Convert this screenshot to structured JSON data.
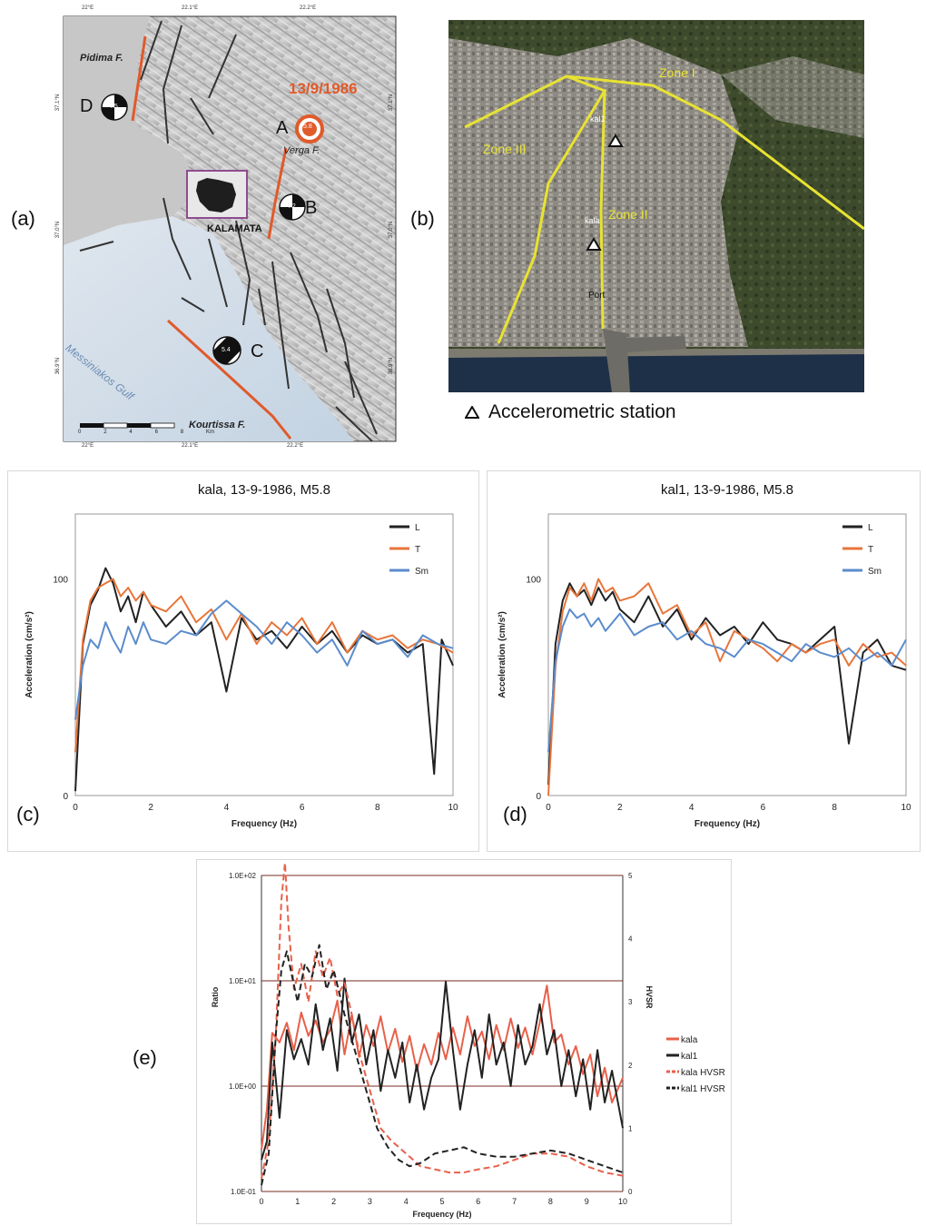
{
  "panels": {
    "a": {
      "label": "(a)",
      "faults": {
        "pidima": "Pidima F.",
        "verga": "Verga F.",
        "kourtissa": "Kourtissa F."
      },
      "city": "KALAMATA",
      "event_date": "13/9/1986",
      "gulf": "Messiniakos Gulf",
      "events": [
        {
          "letter": "A",
          "mag": "5.8",
          "color": "#e05a2b"
        },
        {
          "letter": "B",
          "mag": "4.2",
          "color": "#111111"
        },
        {
          "letter": "C",
          "mag": "5.4",
          "color": "#111111"
        },
        {
          "letter": "D",
          "mag": "4.5",
          "color": "#111111"
        }
      ],
      "scale": {
        "ticks": [
          "0",
          "2",
          "4",
          "6",
          "8"
        ],
        "unit": "Km"
      },
      "lon_ticks": [
        "22°E",
        "22.1°E",
        "22.2°E"
      ],
      "lat_ticks": [
        "37.1°N",
        "37.0°N",
        "36.9°N"
      ]
    },
    "b": {
      "label": "(b)",
      "zones": [
        "Zone I",
        "Zone II",
        "Zone III"
      ],
      "stations": [
        "kal1",
        "kala"
      ],
      "port": "Port",
      "legend": "Accelerometric station"
    },
    "c": {
      "label": "(c)"
    },
    "d": {
      "label": "(d)"
    },
    "e": {
      "label": "(e)"
    }
  },
  "chart_data": [
    {
      "type": "line",
      "title": "kala, 13-9-1986, M5.8",
      "xlabel": "Frequency (Hz)",
      "ylabel": "Acceleration (cm/s²)",
      "xlim": [
        0,
        10
      ],
      "x_ticks": [
        "0",
        "2",
        "4",
        "6",
        "8",
        "10"
      ],
      "y_ticks": [
        "0",
        "100"
      ],
      "legend_position": "top-right",
      "series": [
        {
          "name": "L",
          "color": "#222222",
          "x": [
            0,
            0.2,
            0.4,
            0.6,
            0.8,
            1.0,
            1.2,
            1.4,
            1.6,
            1.8,
            2.0,
            2.4,
            2.8,
            3.2,
            3.6,
            4.0,
            4.4,
            4.8,
            5.2,
            5.6,
            6.0,
            6.4,
            6.8,
            7.2,
            7.6,
            8.0,
            8.4,
            8.8,
            9.2,
            9.5,
            9.7,
            10
          ],
          "y": [
            2,
            70,
            88,
            95,
            105,
            98,
            85,
            92,
            80,
            94,
            88,
            78,
            85,
            74,
            80,
            48,
            82,
            72,
            76,
            68,
            78,
            70,
            76,
            66,
            74,
            70,
            72,
            66,
            70,
            10,
            72,
            60
          ]
        },
        {
          "name": "T",
          "color": "#e8753a",
          "x": [
            0,
            0.2,
            0.4,
            0.6,
            0.8,
            1.0,
            1.2,
            1.4,
            1.6,
            1.8,
            2.0,
            2.4,
            2.8,
            3.2,
            3.6,
            4.0,
            4.4,
            4.8,
            5.2,
            5.6,
            6.0,
            6.4,
            6.8,
            7.2,
            7.6,
            8.0,
            8.4,
            8.8,
            9.2,
            9.6,
            10
          ],
          "y": [
            20,
            72,
            90,
            96,
            98,
            100,
            92,
            96,
            90,
            94,
            88,
            85,
            92,
            80,
            86,
            72,
            84,
            70,
            80,
            74,
            82,
            70,
            80,
            66,
            76,
            72,
            74,
            68,
            72,
            70,
            66
          ]
        },
        {
          "name": "Sm",
          "color": "#5b8ccc",
          "x": [
            0,
            0.2,
            0.4,
            0.6,
            0.8,
            1.0,
            1.2,
            1.4,
            1.6,
            1.8,
            2.0,
            2.4,
            2.8,
            3.2,
            3.6,
            4.0,
            4.4,
            4.8,
            5.2,
            5.6,
            6.0,
            6.4,
            6.8,
            7.2,
            7.6,
            8.0,
            8.4,
            8.8,
            9.2,
            9.6,
            10
          ],
          "y": [
            35,
            60,
            72,
            68,
            80,
            72,
            66,
            78,
            70,
            80,
            72,
            70,
            76,
            74,
            84,
            90,
            84,
            78,
            70,
            80,
            74,
            66,
            72,
            60,
            76,
            70,
            72,
            64,
            74,
            70,
            68
          ]
        }
      ]
    },
    {
      "type": "line",
      "title": "kal1, 13-9-1986, M5.8",
      "xlabel": "Frequency (Hz)",
      "ylabel": "Acceleration (cm/s²)",
      "xlim": [
        0,
        10
      ],
      "x_ticks": [
        "0",
        "2",
        "4",
        "6",
        "8",
        "10"
      ],
      "y_ticks": [
        "0",
        "100"
      ],
      "legend_position": "top-right",
      "series": [
        {
          "name": "L",
          "color": "#222222",
          "x": [
            0,
            0.2,
            0.4,
            0.6,
            0.8,
            1.0,
            1.2,
            1.4,
            1.6,
            1.8,
            2.0,
            2.4,
            2.8,
            3.2,
            3.6,
            4.0,
            4.4,
            4.8,
            5.2,
            5.6,
            6.0,
            6.4,
            6.8,
            7.2,
            7.6,
            8.0,
            8.4,
            8.8,
            9.2,
            9.6,
            10
          ],
          "y": [
            5,
            70,
            90,
            98,
            92,
            95,
            88,
            96,
            90,
            94,
            86,
            80,
            92,
            78,
            86,
            72,
            82,
            74,
            78,
            70,
            80,
            72,
            70,
            66,
            72,
            78,
            24,
            66,
            72,
            60,
            58
          ]
        },
        {
          "name": "T",
          "color": "#e8753a",
          "x": [
            0,
            0.2,
            0.4,
            0.6,
            0.8,
            1.0,
            1.2,
            1.4,
            1.6,
            1.8,
            2.0,
            2.4,
            2.8,
            3.2,
            3.6,
            4.0,
            4.4,
            4.8,
            5.2,
            5.6,
            6.0,
            6.4,
            6.8,
            7.2,
            7.6,
            8.0,
            8.4,
            8.8,
            9.2,
            9.6,
            10
          ],
          "y": [
            0,
            60,
            85,
            96,
            92,
            98,
            90,
            100,
            94,
            96,
            90,
            92,
            98,
            84,
            88,
            74,
            80,
            62,
            76,
            72,
            68,
            62,
            70,
            66,
            70,
            72,
            60,
            70,
            64,
            66,
            60
          ]
        },
        {
          "name": "Sm",
          "color": "#5b8ccc",
          "x": [
            0,
            0.2,
            0.4,
            0.6,
            0.8,
            1.0,
            1.2,
            1.4,
            1.6,
            1.8,
            2.0,
            2.4,
            2.8,
            3.2,
            3.6,
            4.0,
            4.4,
            4.8,
            5.2,
            5.6,
            6.0,
            6.4,
            6.8,
            7.2,
            7.6,
            8.0,
            8.4,
            8.8,
            9.2,
            9.6,
            10
          ],
          "y": [
            20,
            62,
            78,
            86,
            82,
            84,
            78,
            82,
            76,
            80,
            84,
            74,
            78,
            80,
            72,
            76,
            70,
            68,
            64,
            72,
            70,
            66,
            62,
            70,
            66,
            64,
            68,
            62,
            66,
            60,
            72
          ]
        }
      ]
    },
    {
      "type": "line",
      "xlabel": "Frequency (Hz)",
      "ylabel": "Ratio",
      "y2label": "HVSR",
      "xlim": [
        0,
        10
      ],
      "ylim": [
        0.1,
        100
      ],
      "y_log": true,
      "y2lim": [
        0,
        5
      ],
      "x_ticks": [
        "0",
        "1",
        "2",
        "3",
        "4",
        "5",
        "6",
        "7",
        "8",
        "9",
        "10"
      ],
      "y_ticks": [
        "1.0E-01",
        "1.0E+00",
        "1.0E+01",
        "1.0E+02"
      ],
      "y2_ticks": [
        "0",
        "1",
        "2",
        "3",
        "4",
        "5"
      ],
      "legend_position": "right",
      "series": [
        {
          "name": "kala",
          "color": "#e8604a",
          "axis": "left",
          "x": [
            0,
            0.15,
            0.3,
            0.5,
            0.7,
            0.9,
            1.1,
            1.3,
            1.5,
            1.7,
            1.9,
            2.1,
            2.3,
            2.5,
            2.7,
            2.9,
            3.1,
            3.3,
            3.5,
            3.7,
            3.9,
            4.1,
            4.3,
            4.5,
            4.7,
            4.9,
            5.1,
            5.3,
            5.5,
            5.7,
            5.9,
            6.1,
            6.3,
            6.5,
            6.7,
            6.9,
            7.1,
            7.3,
            7.5,
            7.7,
            7.9,
            8.1,
            8.3,
            8.5,
            8.7,
            8.9,
            9.1,
            9.3,
            9.5,
            9.7,
            10
          ],
          "y": [
            0.25,
            0.6,
            3.2,
            2.6,
            4.0,
            2.2,
            5.0,
            3.0,
            4.2,
            2.6,
            3.4,
            6.5,
            2.0,
            4.8,
            1.9,
            3.8,
            2.4,
            4.6,
            2.1,
            3.5,
            1.7,
            3.0,
            1.4,
            2.5,
            1.6,
            3.2,
            1.8,
            3.6,
            2.0,
            4.6,
            2.4,
            3.3,
            1.8,
            3.8,
            2.2,
            4.4,
            2.3,
            3.6,
            2.0,
            4.0,
            9.0,
            2.6,
            3.1,
            1.6,
            2.4,
            1.3,
            2.0,
            0.8,
            1.5,
            0.7,
            1.2
          ]
        },
        {
          "name": "kal1",
          "color": "#222222",
          "axis": "left",
          "x": [
            0,
            0.15,
            0.3,
            0.5,
            0.7,
            0.9,
            1.1,
            1.3,
            1.5,
            1.7,
            1.9,
            2.1,
            2.3,
            2.5,
            2.7,
            2.9,
            3.1,
            3.3,
            3.5,
            3.7,
            3.9,
            4.1,
            4.3,
            4.5,
            4.7,
            4.9,
            5.1,
            5.3,
            5.5,
            5.7,
            5.9,
            6.1,
            6.3,
            6.5,
            6.7,
            6.9,
            7.1,
            7.3,
            7.5,
            7.7,
            7.9,
            8.1,
            8.3,
            8.5,
            8.7,
            8.9,
            9.1,
            9.3,
            9.5,
            9.7,
            10
          ],
          "y": [
            0.2,
            0.3,
            2.6,
            0.5,
            3.4,
            1.8,
            2.8,
            1.6,
            6.0,
            2.2,
            4.4,
            1.4,
            10.5,
            2.6,
            4.8,
            1.6,
            3.4,
            0.9,
            2.2,
            1.2,
            2.6,
            0.7,
            1.6,
            0.6,
            1.2,
            1.8,
            9.8,
            2.2,
            0.6,
            1.6,
            3.4,
            1.2,
            4.8,
            1.6,
            2.6,
            1.0,
            3.8,
            1.6,
            2.4,
            6.0,
            2.0,
            3.4,
            1.0,
            2.2,
            0.8,
            1.8,
            0.6,
            2.2,
            0.7,
            1.4,
            0.4
          ]
        },
        {
          "name": "kala HVSR",
          "color": "#e8604a",
          "axis": "right",
          "dashed": true,
          "x": [
            0,
            0.2,
            0.4,
            0.55,
            0.65,
            0.75,
            0.9,
            1.1,
            1.3,
            1.5,
            1.7,
            1.9,
            2.1,
            2.3,
            2.5,
            2.7,
            3.0,
            3.3,
            3.6,
            4.0,
            4.4,
            4.8,
            5.2,
            5.6,
            6.0,
            6.5,
            7.0,
            7.5,
            8.0,
            8.5,
            9.0,
            9.5,
            10
          ],
          "y": [
            0.2,
            0.8,
            2.5,
            4.6,
            5.2,
            4.2,
            3.2,
            3.6,
            3.0,
            3.8,
            3.4,
            3.7,
            3.1,
            3.3,
            2.8,
            2.2,
            1.6,
            1.0,
            0.8,
            0.6,
            0.4,
            0.35,
            0.3,
            0.3,
            0.35,
            0.4,
            0.5,
            0.6,
            0.6,
            0.55,
            0.4,
            0.3,
            0.25
          ]
        },
        {
          "name": "kal1 HVSR",
          "color": "#222222",
          "axis": "right",
          "dashed": true,
          "x": [
            0,
            0.2,
            0.4,
            0.55,
            0.7,
            0.85,
            1.0,
            1.2,
            1.4,
            1.6,
            1.8,
            2.0,
            2.3,
            2.6,
            2.9,
            3.2,
            3.5,
            3.8,
            4.1,
            4.4,
            4.8,
            5.2,
            5.6,
            6.0,
            6.5,
            7.0,
            7.5,
            8.0,
            8.5,
            9.0,
            9.5,
            10
          ],
          "y": [
            0.1,
            0.6,
            2.5,
            3.5,
            3.8,
            3.4,
            3.0,
            3.6,
            3.4,
            3.9,
            3.2,
            3.5,
            2.8,
            2.2,
            1.6,
            1.0,
            0.7,
            0.5,
            0.4,
            0.45,
            0.6,
            0.65,
            0.7,
            0.6,
            0.55,
            0.55,
            0.6,
            0.65,
            0.6,
            0.5,
            0.4,
            0.3
          ]
        }
      ]
    }
  ]
}
